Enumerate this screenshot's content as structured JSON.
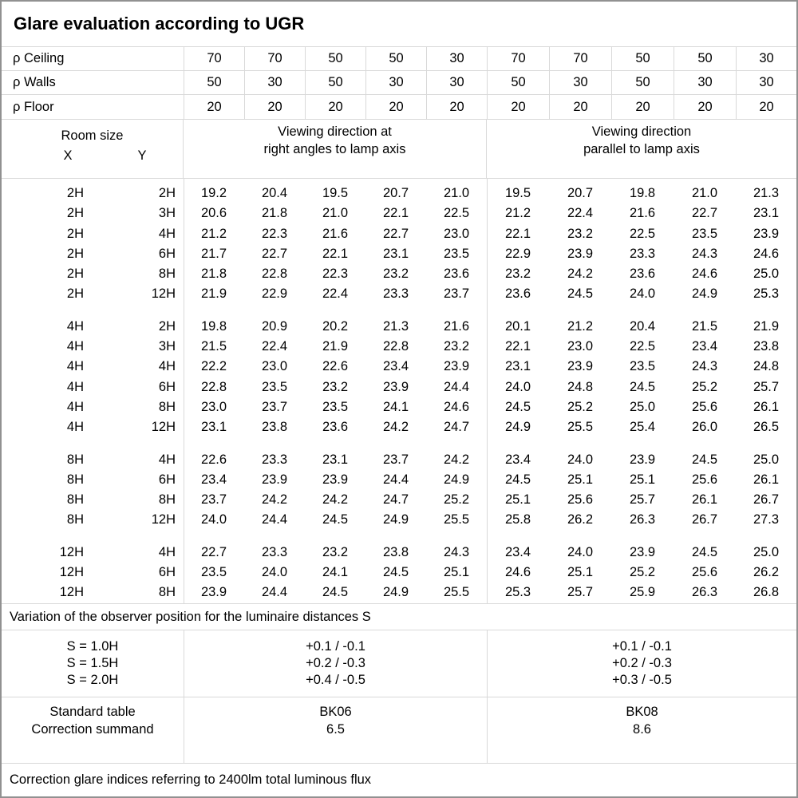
{
  "title": "Glare evaluation according to UGR",
  "reflectance_rows": [
    {
      "label": "ρ Ceiling",
      "values": [
        "70",
        "70",
        "50",
        "50",
        "30",
        "70",
        "70",
        "50",
        "50",
        "30"
      ]
    },
    {
      "label": "ρ Walls",
      "values": [
        "50",
        "30",
        "50",
        "30",
        "30",
        "50",
        "30",
        "50",
        "30",
        "30"
      ]
    },
    {
      "label": "ρ Floor",
      "values": [
        "20",
        "20",
        "20",
        "20",
        "20",
        "20",
        "20",
        "20",
        "20",
        "20"
      ]
    }
  ],
  "room_header": {
    "room_size_label": "Room size",
    "x_label": "X",
    "y_label": "Y",
    "left_heading_line1": "Viewing direction at",
    "left_heading_line2": "right angles to lamp axis",
    "right_heading_line1": "Viewing direction",
    "right_heading_line2": "parallel to lamp axis"
  },
  "ugr_groups": [
    {
      "rows": [
        {
          "x": "2H",
          "y": "2H",
          "values": [
            "19.2",
            "20.4",
            "19.5",
            "20.7",
            "21.0",
            "19.5",
            "20.7",
            "19.8",
            "21.0",
            "21.3"
          ]
        },
        {
          "x": "2H",
          "y": "3H",
          "values": [
            "20.6",
            "21.8",
            "21.0",
            "22.1",
            "22.5",
            "21.2",
            "22.4",
            "21.6",
            "22.7",
            "23.1"
          ]
        },
        {
          "x": "2H",
          "y": "4H",
          "values": [
            "21.2",
            "22.3",
            "21.6",
            "22.7",
            "23.0",
            "22.1",
            "23.2",
            "22.5",
            "23.5",
            "23.9"
          ]
        },
        {
          "x": "2H",
          "y": "6H",
          "values": [
            "21.7",
            "22.7",
            "22.1",
            "23.1",
            "23.5",
            "22.9",
            "23.9",
            "23.3",
            "24.3",
            "24.6"
          ]
        },
        {
          "x": "2H",
          "y": "8H",
          "values": [
            "21.8",
            "22.8",
            "22.3",
            "23.2",
            "23.6",
            "23.2",
            "24.2",
            "23.6",
            "24.6",
            "25.0"
          ]
        },
        {
          "x": "2H",
          "y": "12H",
          "values": [
            "21.9",
            "22.9",
            "22.4",
            "23.3",
            "23.7",
            "23.6",
            "24.5",
            "24.0",
            "24.9",
            "25.3"
          ]
        }
      ]
    },
    {
      "rows": [
        {
          "x": "4H",
          "y": "2H",
          "values": [
            "19.8",
            "20.9",
            "20.2",
            "21.3",
            "21.6",
            "20.1",
            "21.2",
            "20.4",
            "21.5",
            "21.9"
          ]
        },
        {
          "x": "4H",
          "y": "3H",
          "values": [
            "21.5",
            "22.4",
            "21.9",
            "22.8",
            "23.2",
            "22.1",
            "23.0",
            "22.5",
            "23.4",
            "23.8"
          ]
        },
        {
          "x": "4H",
          "y": "4H",
          "values": [
            "22.2",
            "23.0",
            "22.6",
            "23.4",
            "23.9",
            "23.1",
            "23.9",
            "23.5",
            "24.3",
            "24.8"
          ]
        },
        {
          "x": "4H",
          "y": "6H",
          "values": [
            "22.8",
            "23.5",
            "23.2",
            "23.9",
            "24.4",
            "24.0",
            "24.8",
            "24.5",
            "25.2",
            "25.7"
          ]
        },
        {
          "x": "4H",
          "y": "8H",
          "values": [
            "23.0",
            "23.7",
            "23.5",
            "24.1",
            "24.6",
            "24.5",
            "25.2",
            "25.0",
            "25.6",
            "26.1"
          ]
        },
        {
          "x": "4H",
          "y": "12H",
          "values": [
            "23.1",
            "23.8",
            "23.6",
            "24.2",
            "24.7",
            "24.9",
            "25.5",
            "25.4",
            "26.0",
            "26.5"
          ]
        }
      ]
    },
    {
      "rows": [
        {
          "x": "8H",
          "y": "4H",
          "values": [
            "22.6",
            "23.3",
            "23.1",
            "23.7",
            "24.2",
            "23.4",
            "24.0",
            "23.9",
            "24.5",
            "25.0"
          ]
        },
        {
          "x": "8H",
          "y": "6H",
          "values": [
            "23.4",
            "23.9",
            "23.9",
            "24.4",
            "24.9",
            "24.5",
            "25.1",
            "25.1",
            "25.6",
            "26.1"
          ]
        },
        {
          "x": "8H",
          "y": "8H",
          "values": [
            "23.7",
            "24.2",
            "24.2",
            "24.7",
            "25.2",
            "25.1",
            "25.6",
            "25.7",
            "26.1",
            "26.7"
          ]
        },
        {
          "x": "8H",
          "y": "12H",
          "values": [
            "24.0",
            "24.4",
            "24.5",
            "24.9",
            "25.5",
            "25.8",
            "26.2",
            "26.3",
            "26.7",
            "27.3"
          ]
        }
      ]
    },
    {
      "rows": [
        {
          "x": "12H",
          "y": "4H",
          "values": [
            "22.7",
            "23.3",
            "23.2",
            "23.8",
            "24.3",
            "23.4",
            "24.0",
            "23.9",
            "24.5",
            "25.0"
          ]
        },
        {
          "x": "12H",
          "y": "6H",
          "values": [
            "23.5",
            "24.0",
            "24.1",
            "24.5",
            "25.1",
            "24.6",
            "25.1",
            "25.2",
            "25.6",
            "26.2"
          ]
        },
        {
          "x": "12H",
          "y": "8H",
          "values": [
            "23.9",
            "24.4",
            "24.5",
            "24.9",
            "25.5",
            "25.3",
            "25.7",
            "25.9",
            "26.3",
            "26.8"
          ]
        }
      ]
    }
  ],
  "variation": {
    "note": "Variation of the observer position for the luminaire distances S",
    "rows": [
      {
        "s": "S = 1.0H",
        "right_angles": "+0.1 / -0.1",
        "parallel": "+0.1 / -0.1"
      },
      {
        "s": "S = 1.5H",
        "right_angles": "+0.2 / -0.3",
        "parallel": "+0.2 / -0.3"
      },
      {
        "s": "S = 2.0H",
        "right_angles": "+0.4 / -0.5",
        "parallel": "+0.3 / -0.5"
      }
    ]
  },
  "summary": {
    "row1_label": "Standard table",
    "row2_label": "Correction summand",
    "right_angles_table": "BK06",
    "right_angles_summand": "6.5",
    "parallel_table": "BK08",
    "parallel_summand": "8.6"
  },
  "footer_note": "Correction glare indices referring to 2400lm total luminous flux"
}
